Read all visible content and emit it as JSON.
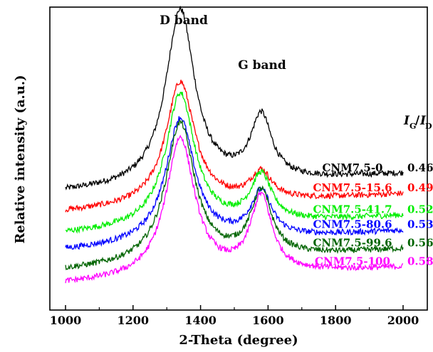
{
  "chart_data": {
    "type": "line",
    "xlabel": "2-Theta (degree)",
    "ylabel": "Relative intensity (a.u.)",
    "xlim": [
      1000,
      2000
    ],
    "x_ticks": [
      1000,
      1200,
      1400,
      1600,
      1800,
      2000
    ],
    "y_ticks_shown": false,
    "grid": false,
    "legend": "none",
    "annotations": {
      "d_band": "D band",
      "g_band": "G band",
      "ratio_header_main_i": "I",
      "ratio_header_sub_g": "G",
      "ratio_header_slash": "/",
      "ratio_header_main_i2": "I",
      "ratio_header_sub_d": "D"
    },
    "peaks": {
      "d_band_position": 1340,
      "g_band_position": 1580
    },
    "series": [
      {
        "name": "CNM7.5-0",
        "ratio": "0.46",
        "color": "#000000",
        "baseline_left": 0.61,
        "baseline_right": 0.72,
        "d_peak": 1.7,
        "g_peak": 1.05
      },
      {
        "name": "CNM7.5-15.6",
        "ratio": "0.49",
        "color": "#ff0000",
        "baseline_left": 0.49,
        "baseline_right": 0.6,
        "d_peak": 1.27,
        "g_peak": 0.72
      },
      {
        "name": "CNM7.5-41.7",
        "ratio": "0.52",
        "color": "#00ee00",
        "baseline_left": 0.36,
        "baseline_right": 0.47,
        "d_peak": 1.2,
        "g_peak": 0.7
      },
      {
        "name": "CNM7.5-80.6",
        "ratio": "0.53",
        "color": "#0000ff",
        "baseline_left": 0.26,
        "baseline_right": 0.38,
        "d_peak": 1.05,
        "g_peak": 0.6
      },
      {
        "name": "CNM7.5-99.6",
        "ratio": "0.56",
        "color": "#006400",
        "baseline_left": 0.14,
        "baseline_right": 0.27,
        "d_peak": 1.02,
        "g_peak": 0.6
      },
      {
        "name": "CNM7.5-100",
        "ratio": "0.58",
        "color": "#ff00ff",
        "baseline_left": 0.06,
        "baseline_right": 0.16,
        "d_peak": 0.93,
        "g_peak": 0.57
      }
    ]
  }
}
